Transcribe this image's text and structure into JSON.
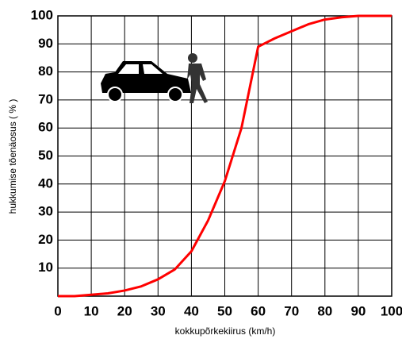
{
  "chart_data": {
    "type": "line",
    "x_label": "kokkupõrkekiirus (km/h)",
    "y_label": "hukkumise tõenäosus ( % )",
    "x": [
      0,
      5,
      10,
      15,
      20,
      25,
      30,
      35,
      40,
      45,
      50,
      55,
      60,
      65,
      70,
      75,
      80,
      85,
      90,
      100
    ],
    "series": [
      {
        "color": "#ff0000",
        "values": [
          0,
          0,
          0.5,
          1,
          2,
          3.5,
          6,
          9.5,
          16,
          27,
          41,
          60,
          89,
          92,
          94.5,
          97,
          98.7,
          99.5,
          100,
          100
        ]
      }
    ],
    "xlim": [
      0,
      100
    ],
    "xticks": [
      0,
      10,
      20,
      30,
      40,
      50,
      60,
      70,
      80,
      90,
      100
    ],
    "ylim": [
      0,
      100
    ],
    "yticks": [
      10,
      20,
      30,
      40,
      50,
      60,
      70,
      80,
      90,
      100
    ],
    "grid": true
  }
}
